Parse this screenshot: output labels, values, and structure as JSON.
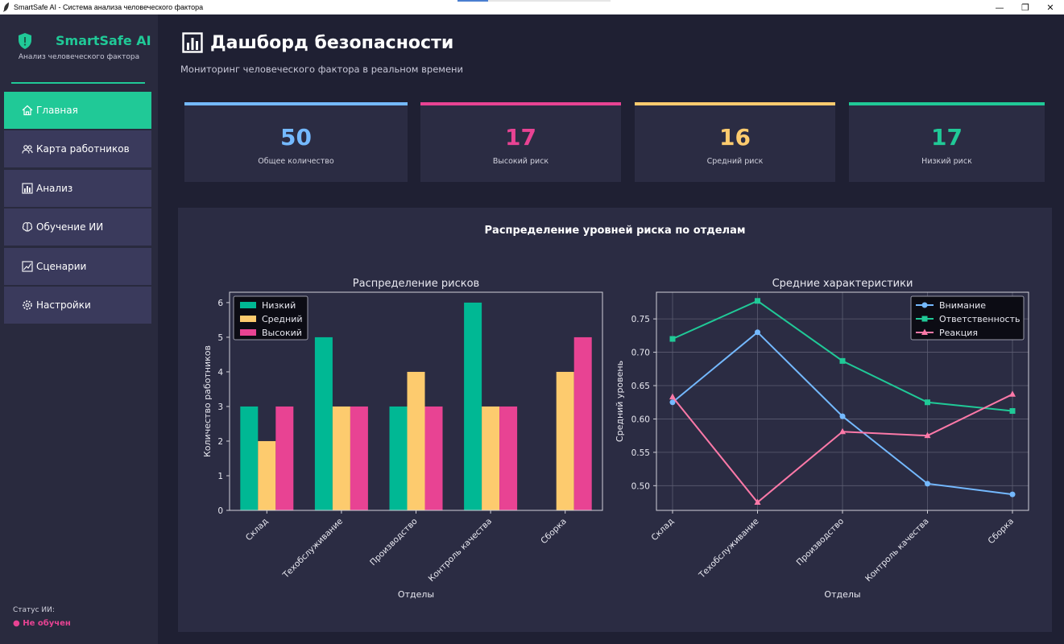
{
  "window": {
    "title": "SmartSafe AI - Система анализа человеческого фактора",
    "minimize": "—",
    "restore": "❐",
    "close": "✕"
  },
  "sidebar": {
    "brand_name": "SmartSafe AI",
    "brand_subtitle": "Анализ человеческого фактора",
    "items": [
      {
        "label": "Главная",
        "icon": "home-icon",
        "active": true
      },
      {
        "label": "Карта работников",
        "icon": "users-icon",
        "active": false
      },
      {
        "label": "Анализ",
        "icon": "bar-chart-icon",
        "active": false
      },
      {
        "label": "Обучение ИИ",
        "icon": "brain-icon",
        "active": false
      },
      {
        "label": "Сценарии",
        "icon": "line-chart-icon",
        "active": false
      },
      {
        "label": "Настройки",
        "icon": "gear-icon",
        "active": false
      }
    ],
    "status_label": "Статус ИИ:",
    "status_value": "● Не обучен"
  },
  "header": {
    "title": "Дашборд безопасности",
    "subtitle": "Мониторинг человеческого фактора в реальном времени"
  },
  "stats": [
    {
      "value": "50",
      "label": "Общее количество",
      "color": "#74b9ff"
    },
    {
      "value": "17",
      "label": "Высокий риск",
      "color": "#e84393"
    },
    {
      "value": "16",
      "label": "Средний риск",
      "color": "#fdcb6e"
    },
    {
      "value": "17",
      "label": "Низкий риск",
      "color": "#20c997"
    }
  ],
  "panel": {
    "title": "Распределение уровней риска по отделам"
  },
  "chart_data": [
    {
      "type": "bar",
      "title": "Распределение рисков",
      "xlabel": "Отделы",
      "ylabel": "Количество работников",
      "categories": [
        "Склад",
        "Техобслуживание",
        "Производство",
        "Контроль качества",
        "Сборка"
      ],
      "series": [
        {
          "name": "Низкий",
          "values": [
            3,
            5,
            3,
            6,
            0
          ],
          "color": "#00b894"
        },
        {
          "name": "Средний",
          "values": [
            2,
            3,
            4,
            3,
            4
          ],
          "color": "#fdcb6e"
        },
        {
          "name": "Высокий",
          "values": [
            3,
            3,
            3,
            3,
            5
          ],
          "color": "#e84393"
        }
      ],
      "ylim": [
        0,
        6.3
      ],
      "yticks": [
        "0",
        "1",
        "2",
        "3",
        "4",
        "5",
        "6"
      ],
      "legend": "top-left",
      "grid": false
    },
    {
      "type": "line",
      "title": "Средние характеристики",
      "xlabel": "Отделы",
      "ylabel": "Средний уровень",
      "categories": [
        "Склад",
        "Техобслуживание",
        "Производство",
        "Контроль качества",
        "Сборка"
      ],
      "series": [
        {
          "name": "Внимание",
          "values": [
            0.625,
            0.73,
            0.604,
            0.503,
            0.487
          ],
          "color": "#74b9ff",
          "marker": "circle"
        },
        {
          "name": "Ответственность",
          "values": [
            0.72,
            0.777,
            0.687,
            0.625,
            0.612
          ],
          "color": "#20c997",
          "marker": "square"
        },
        {
          "name": "Реакция",
          "values": [
            0.633,
            0.475,
            0.581,
            0.575,
            0.637
          ],
          "color": "#fd79a8",
          "marker": "triangle"
        }
      ],
      "ylim": [
        0.463,
        0.79
      ],
      "yticks": [
        "0.50",
        "0.55",
        "0.60",
        "0.65",
        "0.70",
        "0.75"
      ],
      "legend": "top-right",
      "grid": true
    }
  ]
}
